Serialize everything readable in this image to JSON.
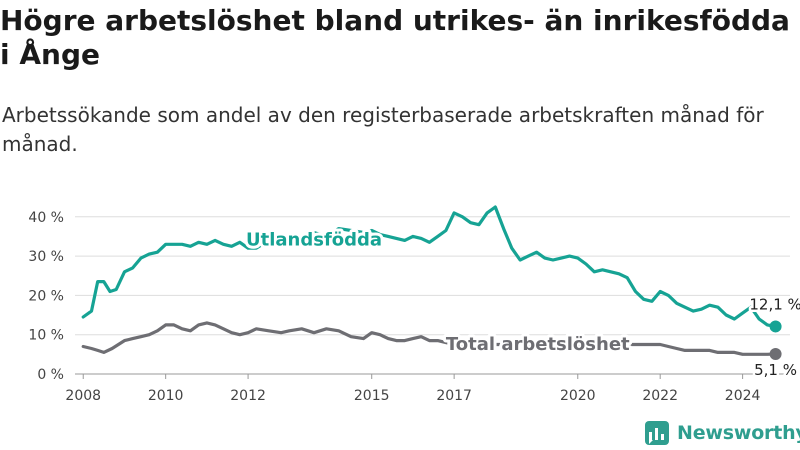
{
  "title": "Högre arbetslöshet bland utrikes- än inrikesfödda i Ånge",
  "subtitle": "Arbetssökande som andel av den registerbaserade arbetskraften månad för månad.",
  "brand": {
    "name": "Newsworthy",
    "icon": "newsworthy-chart-logo-icon",
    "color": "#2f9e8f"
  },
  "chart_data": {
    "type": "line",
    "ylim": [
      0,
      43
    ],
    "xlim": [
      2007.8,
      2025.15
    ],
    "y_ticks": [
      0,
      10,
      20,
      30,
      40
    ],
    "y_tick_labels": [
      "0 %",
      "10 %",
      "20 %",
      "30 %",
      "40 %"
    ],
    "x_ticks": [
      2008,
      2010,
      2012,
      2015,
      2017,
      2020,
      2022,
      2024
    ],
    "x_tick_labels": [
      "2008",
      "2010",
      "2012",
      "2015",
      "2017",
      "2020",
      "2022",
      "2024"
    ],
    "grid": true,
    "legend": "inline labels on the lines",
    "series": [
      {
        "name": "Utlandsfödda",
        "color": "#16a394",
        "end_label": "12,1 %",
        "x": [
          2008.0,
          2008.2,
          2008.35,
          2008.5,
          2008.65,
          2008.8,
          2009.0,
          2009.2,
          2009.4,
          2009.6,
          2009.8,
          2010.0,
          2010.2,
          2010.4,
          2010.6,
          2010.8,
          2011.0,
          2011.2,
          2011.4,
          2011.6,
          2011.8,
          2012.0,
          2012.2,
          2012.5,
          2012.8,
          2013.0,
          2013.3,
          2013.6,
          2013.9,
          2014.2,
          2014.5,
          2014.8,
          2015.0,
          2015.2,
          2015.4,
          2015.6,
          2015.8,
          2016.0,
          2016.2,
          2016.4,
          2016.6,
          2016.8,
          2017.0,
          2017.2,
          2017.4,
          2017.6,
          2017.8,
          2018.0,
          2018.2,
          2018.4,
          2018.6,
          2018.8,
          2019.0,
          2019.2,
          2019.4,
          2019.6,
          2019.8,
          2020.0,
          2020.2,
          2020.4,
          2020.6,
          2020.8,
          2021.0,
          2021.2,
          2021.4,
          2021.6,
          2021.8,
          2022.0,
          2022.2,
          2022.4,
          2022.6,
          2022.8,
          2023.0,
          2023.2,
          2023.4,
          2023.6,
          2023.8,
          2024.0,
          2024.2,
          2024.4,
          2024.6,
          2024.8
        ],
        "values": [
          14.5,
          16,
          23.5,
          23.5,
          21,
          21.5,
          26,
          27,
          29.5,
          30.5,
          31,
          33,
          33,
          33,
          32.5,
          33.5,
          33,
          34,
          33,
          32.5,
          33.5,
          32,
          32,
          34,
          33.5,
          35,
          34,
          36,
          35,
          37,
          36.5,
          36,
          36.5,
          35.5,
          35,
          34.5,
          34,
          35,
          34.5,
          33.5,
          35,
          36.5,
          41,
          40,
          38.5,
          38,
          41,
          42.5,
          37,
          32,
          29,
          30,
          31,
          29.5,
          29,
          29.5,
          30,
          29.5,
          28,
          26,
          26.5,
          26,
          25.5,
          24.5,
          21,
          19,
          18.5,
          21,
          20,
          18,
          17,
          16,
          16.5,
          17.5,
          17,
          15,
          14,
          15.5,
          17,
          14,
          12.5,
          12.1
        ]
      },
      {
        "name": "Total arbetslöshet",
        "color": "#6e6e73",
        "end_label": "5,1 %",
        "x": [
          2008.0,
          2008.2,
          2008.35,
          2008.5,
          2008.7,
          2009.0,
          2009.2,
          2009.4,
          2009.6,
          2009.8,
          2010.0,
          2010.2,
          2010.4,
          2010.6,
          2010.8,
          2011.0,
          2011.2,
          2011.4,
          2011.6,
          2011.8,
          2012.0,
          2012.2,
          2012.5,
          2012.8,
          2013.0,
          2013.3,
          2013.6,
          2013.9,
          2014.2,
          2014.5,
          2014.8,
          2015.0,
          2015.2,
          2015.4,
          2015.6,
          2015.8,
          2016.0,
          2016.2,
          2016.4,
          2016.6,
          2016.8,
          2017.0,
          2017.2,
          2017.5,
          2017.8,
          2018.0,
          2018.3,
          2018.6,
          2018.9,
          2019.2,
          2019.5,
          2019.8,
          2020.0,
          2020.3,
          2020.6,
          2020.9,
          2021.2,
          2021.5,
          2021.8,
          2022.0,
          2022.2,
          2022.4,
          2022.6,
          2022.8,
          2023.0,
          2023.2,
          2023.4,
          2023.6,
          2023.8,
          2024.0,
          2024.2,
          2024.4,
          2024.6,
          2024.8
        ],
        "values": [
          7,
          6.5,
          6,
          5.5,
          6.5,
          8.5,
          9,
          9.5,
          10,
          11,
          12.5,
          12.5,
          11.5,
          11,
          12.5,
          13,
          12.5,
          11.5,
          10.5,
          10,
          10.5,
          11.5,
          11,
          10.5,
          11,
          11.5,
          10.5,
          11.5,
          11,
          9.5,
          9,
          10.5,
          10,
          9,
          8.5,
          8.5,
          9,
          9.5,
          8.5,
          8.5,
          8,
          7.5,
          7.5,
          7.5,
          7.5,
          7.5,
          7.5,
          7.5,
          7.5,
          7.5,
          7.5,
          7.5,
          7.5,
          7.5,
          7.5,
          7.5,
          7.5,
          7.5,
          7.5,
          7.5,
          7,
          6.5,
          6,
          6,
          6,
          6,
          5.5,
          5.5,
          5.5,
          5,
          5,
          5,
          5,
          5.1
        ]
      }
    ]
  }
}
